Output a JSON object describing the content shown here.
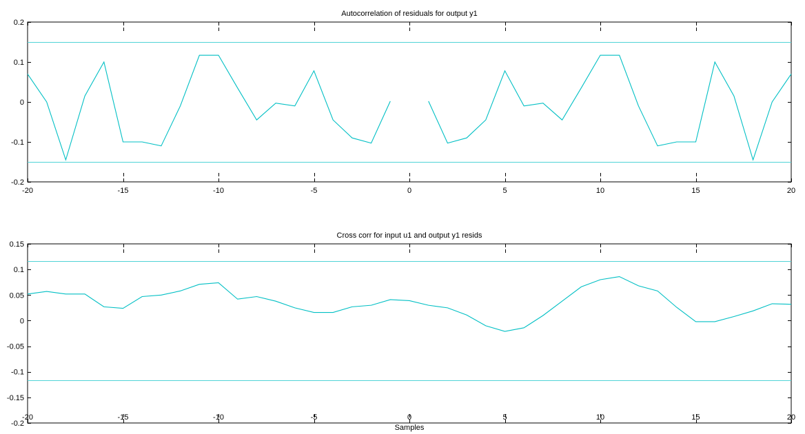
{
  "figure": {
    "background": "#ffffff",
    "line_color": "#00BFC4",
    "conf_color": "#4FD3D6",
    "axes_color": "#000000"
  },
  "chart_data": [
    {
      "type": "line",
      "title": "Autocorrelation of residuals for output y1",
      "xlabel": "",
      "ylabel": "",
      "xlim": [
        -20,
        20
      ],
      "ylim": [
        -0.2,
        0.2
      ],
      "xticks": [
        -20,
        -15,
        -10,
        -5,
        0,
        5,
        10,
        15,
        20
      ],
      "yticks": [
        -0.2,
        -0.1,
        0,
        0.1,
        0.2
      ],
      "xtick_labels": [
        "-20",
        "-15",
        "-10",
        "-5",
        "0",
        "5",
        "10",
        "15",
        "20"
      ],
      "ytick_labels": [
        "-0.2",
        "-0.1",
        "0",
        "0.1",
        "0.2"
      ],
      "confidence_band": [
        0.15,
        -0.15
      ],
      "series": [
        {
          "x": [
            -20,
            -19,
            -18,
            -17,
            -16,
            -15,
            -14,
            -13,
            -12,
            -11,
            -10,
            -9,
            -8,
            -7,
            -6,
            -5,
            -4,
            -3,
            -2,
            -1
          ],
          "values": [
            0.07,
            0.0,
            -0.145,
            0.015,
            0.1,
            -0.1,
            -0.1,
            -0.11,
            -0.01,
            0.117,
            0.117,
            0.035,
            -0.045,
            -0.003,
            -0.01,
            0.078,
            -0.045,
            -0.09,
            -0.103,
            0.002
          ]
        },
        {
          "x": [
            1,
            2,
            3,
            4,
            5,
            6,
            7,
            8,
            9,
            10,
            11,
            12,
            13,
            14,
            15,
            16,
            17,
            18,
            19,
            20
          ],
          "values": [
            0.002,
            -0.103,
            -0.09,
            -0.045,
            0.078,
            -0.01,
            -0.003,
            -0.045,
            0.035,
            0.117,
            0.117,
            -0.01,
            -0.11,
            -0.1,
            -0.1,
            0.1,
            0.015,
            -0.145,
            0.0,
            0.07
          ]
        }
      ]
    },
    {
      "type": "line",
      "title": "Cross corr for input u1 and output y1 resids",
      "xlabel": "Samples",
      "ylabel": "",
      "xlim": [
        -20,
        20
      ],
      "ylim": [
        -0.2,
        0.15
      ],
      "xticks": [
        -20,
        -15,
        -10,
        -5,
        0,
        5,
        10,
        15,
        20
      ],
      "yticks": [
        -0.2,
        -0.15,
        -0.1,
        -0.05,
        0,
        0.05,
        0.1,
        0.15
      ],
      "xtick_labels": [
        "-20",
        "-15",
        "-10",
        "-5",
        "0",
        "5",
        "10",
        "15",
        "20"
      ],
      "ytick_labels": [
        "-0.2",
        "-0.15",
        "-0.1",
        "-0.05",
        "0",
        "0.05",
        "0.1",
        "0.15"
      ],
      "confidence_band": [
        0.117,
        -0.117
      ],
      "series": [
        {
          "x": [
            -20,
            -19,
            -18,
            -17,
            -16,
            -15,
            -14,
            -13,
            -12,
            -11,
            -10,
            -9,
            -8,
            -7,
            -6,
            -5,
            -4,
            -3,
            -2,
            -1,
            0,
            1,
            2,
            3,
            4,
            5,
            6,
            7,
            8,
            9,
            10,
            11,
            12,
            13,
            14,
            15,
            16,
            17,
            18,
            19,
            20
          ],
          "values": [
            0.052,
            0.057,
            0.052,
            0.052,
            0.027,
            0.024,
            0.047,
            0.05,
            0.058,
            0.071,
            0.074,
            0.042,
            0.047,
            0.038,
            0.025,
            0.016,
            0.016,
            0.027,
            0.03,
            0.041,
            0.039,
            0.03,
            0.025,
            0.011,
            -0.01,
            -0.021,
            -0.014,
            0.01,
            0.038,
            0.066,
            0.08,
            0.086,
            0.068,
            0.058,
            0.026,
            -0.002,
            -0.002,
            0.008,
            0.019,
            0.033,
            0.032
          ]
        }
      ]
    }
  ]
}
